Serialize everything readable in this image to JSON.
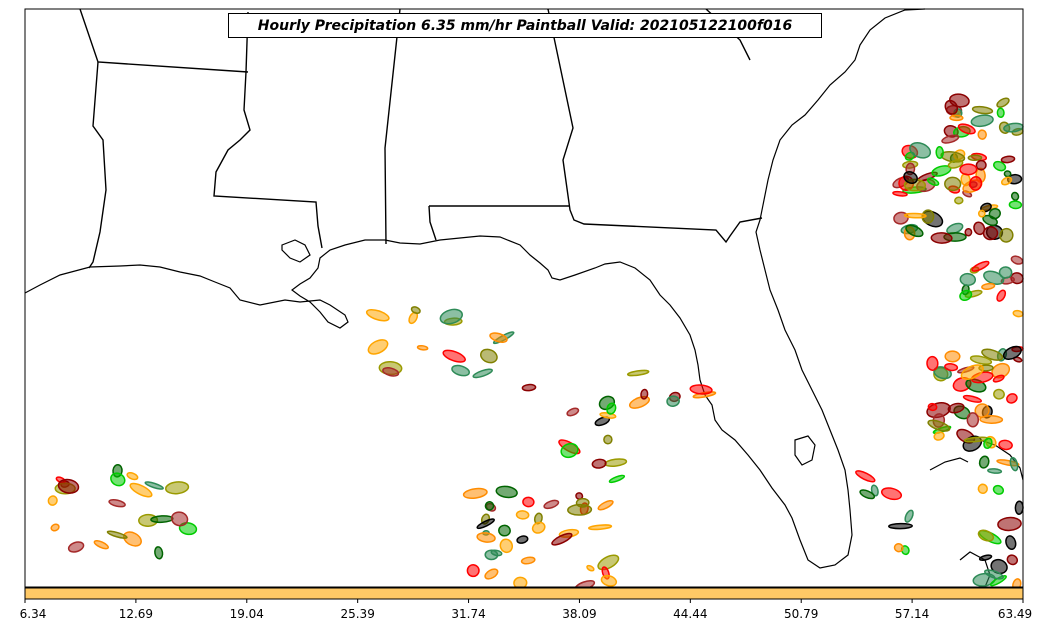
{
  "title": "Hourly Precipitation 6.35 mm/hr Paintball Valid: 202105122100f016",
  "colorbar": {
    "fill_color": "#ffc966",
    "ticks": [
      "6.34",
      "12.69",
      "19.04",
      "25.39",
      "31.74",
      "38.09",
      "44.44",
      "50.79",
      "57.14",
      "63.49"
    ]
  },
  "member_colors": [
    "#8b0000",
    "#ff0000",
    "#ff8c00",
    "#ffa500",
    "#808000",
    "#9a9a00",
    "#00cc00",
    "#006400",
    "#2e8b57",
    "#000000",
    "#a52a2a"
  ],
  "map": {
    "region": "US Gulf Coast and Southeast",
    "land_color": "#ffffff",
    "water_color": "#ffffff",
    "line_color": "#000000"
  }
}
